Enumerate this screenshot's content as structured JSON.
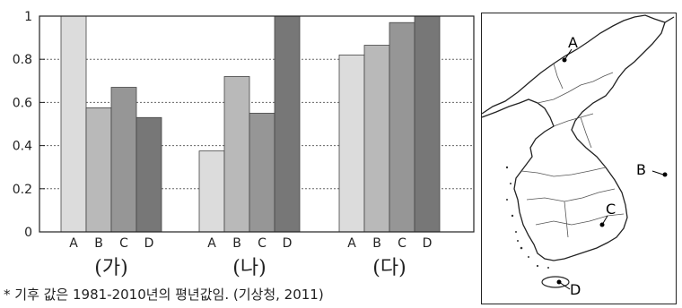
{
  "chart_data": {
    "type": "bar",
    "ylim": [
      0,
      1
    ],
    "yticks": [
      "0",
      "0.2",
      "0.4",
      "0.6",
      "0.8",
      "1"
    ],
    "grid": "horizontal-dashed",
    "groups": [
      {
        "label": "(가)",
        "categories": [
          "A",
          "B",
          "C",
          "D"
        ],
        "values": [
          1.0,
          0.575,
          0.67,
          0.53
        ]
      },
      {
        "label": "(나)",
        "categories": [
          "A",
          "B",
          "C",
          "D"
        ],
        "values": [
          0.375,
          0.72,
          0.55,
          1.0
        ]
      },
      {
        "label": "(다)",
        "categories": [
          "A",
          "B",
          "C",
          "D"
        ],
        "values": [
          0.82,
          0.865,
          0.97,
          1.0
        ]
      }
    ],
    "bar_colors": [
      "#dcdcdc",
      "#b9b9b9",
      "#969696",
      "#777777"
    ]
  },
  "footnote": "* 기후 값은 1981-2010년의 평년값임. (기상청, 2011)",
  "map": {
    "points": [
      {
        "label": "A"
      },
      {
        "label": "B"
      },
      {
        "label": "C"
      },
      {
        "label": "D"
      }
    ]
  }
}
